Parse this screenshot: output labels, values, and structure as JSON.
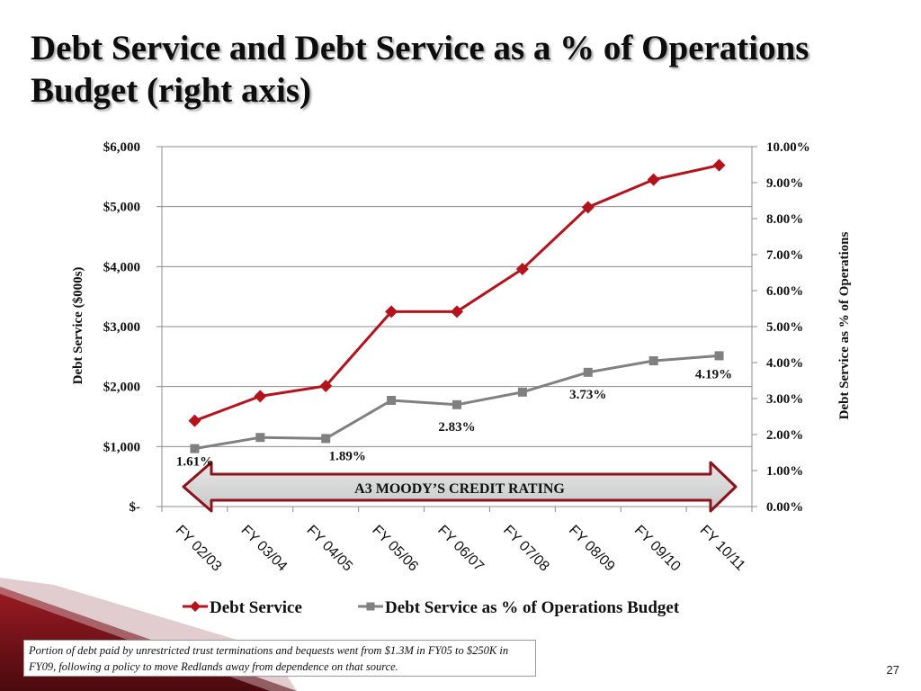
{
  "slide": {
    "title": "Debt Service and Debt Service as a % of Operations Budget (right axis)",
    "footnote": "Portion of debt paid by unrestricted trust terminations and bequests went from $1.3M in FY05 to $250K in FY09, following a policy to move Redlands away from dependence on that source.",
    "page_number": "27"
  },
  "chart_data": {
    "type": "line",
    "categories": [
      "FY 02/03",
      "FY 03/04",
      "FY 04/05",
      "FY 05/06",
      "FY 06/07",
      "FY 07/08",
      "FY 08/09",
      "FY 09/10",
      "FY 10/11"
    ],
    "series": [
      {
        "name": "Debt Service",
        "axis": "left",
        "color": "#b5121b",
        "marker": "diamond",
        "values": [
          1430,
          1840,
          2010,
          3250,
          3250,
          3960,
          4990,
          5450,
          5690
        ]
      },
      {
        "name": "Debt Service as % of Operations Budget",
        "axis": "right",
        "color": "#808080",
        "marker": "square",
        "values": [
          1.61,
          1.92,
          1.89,
          2.95,
          2.83,
          3.18,
          3.73,
          4.05,
          4.19
        ]
      }
    ],
    "data_labels": [
      {
        "series": 1,
        "index": 0,
        "text": "1.61%"
      },
      {
        "series": 1,
        "index": 2,
        "text": "1.89%"
      },
      {
        "series": 1,
        "index": 4,
        "text": "2.83%"
      },
      {
        "series": 1,
        "index": 6,
        "text": "3.73%"
      },
      {
        "series": 1,
        "index": 8,
        "text": "4.19%"
      }
    ],
    "ylabel": "Debt Service ($000s)",
    "y2label": "Debt Service as % of Operations",
    "ylim": [
      0,
      6000
    ],
    "y2lim": [
      0,
      10
    ],
    "yticks": [
      "$-",
      "$1,000",
      "$2,000",
      "$3,000",
      "$4,000",
      "$5,000",
      "$6,000"
    ],
    "y2ticks": [
      "0.00%",
      "1.00%",
      "2.00%",
      "3.00%",
      "4.00%",
      "5.00%",
      "6.00%",
      "7.00%",
      "8.00%",
      "9.00%",
      "10.00%"
    ],
    "grid": true,
    "legend_position": "bottom",
    "annotation": "A3 MOODY’S CREDIT RATING"
  }
}
